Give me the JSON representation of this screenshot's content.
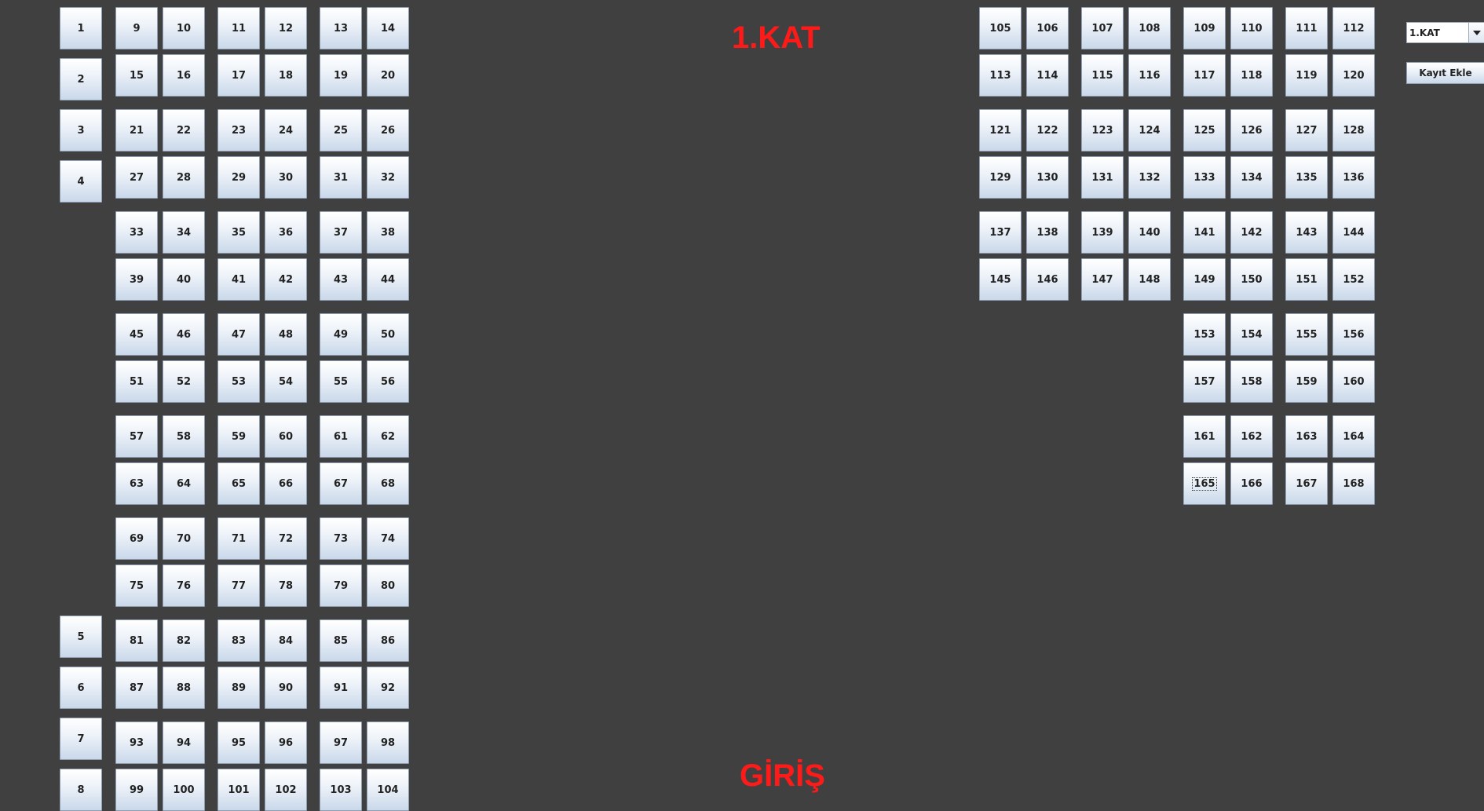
{
  "floor_title": "1.KAT",
  "entrance_label": "GİRİŞ",
  "floor_select": {
    "selected": "1.KAT"
  },
  "add_record_button": "Kayıt Ekle",
  "focused_seat": "165",
  "seats": {
    "left_single": [
      "1",
      "2",
      "3",
      "4",
      "5",
      "6",
      "7",
      "8"
    ],
    "left_block": [
      [
        "9",
        "10",
        "11",
        "12",
        "13",
        "14"
      ],
      [
        "15",
        "16",
        "17",
        "18",
        "19",
        "20"
      ],
      [
        "21",
        "22",
        "23",
        "24",
        "25",
        "26"
      ],
      [
        "27",
        "28",
        "29",
        "30",
        "31",
        "32"
      ],
      [
        "33",
        "34",
        "35",
        "36",
        "37",
        "38"
      ],
      [
        "39",
        "40",
        "41",
        "42",
        "43",
        "44"
      ],
      [
        "45",
        "46",
        "47",
        "48",
        "49",
        "50"
      ],
      [
        "51",
        "52",
        "53",
        "54",
        "55",
        "56"
      ],
      [
        "57",
        "58",
        "59",
        "60",
        "61",
        "62"
      ],
      [
        "63",
        "64",
        "65",
        "66",
        "67",
        "68"
      ],
      [
        "69",
        "70",
        "71",
        "72",
        "73",
        "74"
      ],
      [
        "75",
        "76",
        "77",
        "78",
        "79",
        "80"
      ],
      [
        "81",
        "82",
        "83",
        "84",
        "85",
        "86"
      ],
      [
        "87",
        "88",
        "89",
        "90",
        "91",
        "92"
      ],
      [
        "93",
        "94",
        "95",
        "96",
        "97",
        "98"
      ],
      [
        "99",
        "100",
        "101",
        "102",
        "103",
        "104"
      ]
    ],
    "right_block_full": [
      [
        "105",
        "106",
        "107",
        "108",
        "109",
        "110",
        "111",
        "112"
      ],
      [
        "113",
        "114",
        "115",
        "116",
        "117",
        "118",
        "119",
        "120"
      ],
      [
        "121",
        "122",
        "123",
        "124",
        "125",
        "126",
        "127",
        "128"
      ],
      [
        "129",
        "130",
        "131",
        "132",
        "133",
        "134",
        "135",
        "136"
      ],
      [
        "137",
        "138",
        "139",
        "140",
        "141",
        "142",
        "143",
        "144"
      ],
      [
        "145",
        "146",
        "147",
        "148",
        "149",
        "150",
        "151",
        "152"
      ]
    ],
    "right_block_partial": [
      [
        "153",
        "154",
        "155",
        "156"
      ],
      [
        "157",
        "158",
        "159",
        "160"
      ],
      [
        "161",
        "162",
        "163",
        "164"
      ],
      [
        "165",
        "166",
        "167",
        "168"
      ]
    ]
  }
}
